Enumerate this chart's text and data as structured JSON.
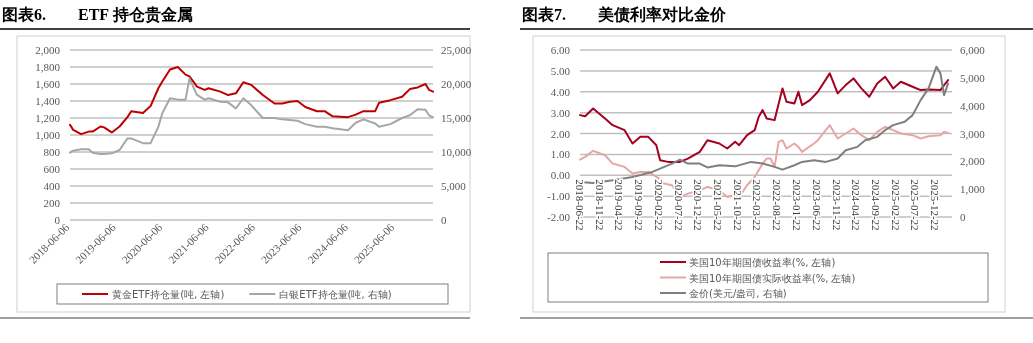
{
  "chart_data": [
    {
      "type": "line",
      "title": "图表6.　　ETF 持仓贵金属",
      "grid": "y",
      "legend": "bottom",
      "x": [
        "2018-06-06",
        "2018-07",
        "2018-09",
        "2018-11",
        "2018-12",
        "2019-02",
        "2019-03",
        "2019-05",
        "2019-07",
        "2019-09",
        "2019-10",
        "2020-01",
        "2020-03",
        "2020-05",
        "2020-06",
        "2020-08",
        "2020-10",
        "2020-12",
        "2021-01",
        "2021-03",
        "2021-05",
        "2021-06",
        "2021-09",
        "2021-11",
        "2022-01",
        "2022-03",
        "2022-05",
        "2022-08",
        "2022-11",
        "2023-01",
        "2023-03",
        "2023-05",
        "2023-07",
        "2023-10",
        "2023-12",
        "2024-02",
        "2024-06",
        "2024-08",
        "2024-10",
        "2025-01",
        "2025-02",
        "2025-05",
        "2025-08",
        "2025-10",
        "2025-12",
        "2026-02",
        "2026-03",
        "2026-04"
      ],
      "series": [
        {
          "name": "黄金ETF持仓量(吨, 左轴)",
          "color": "#c00000",
          "values": [
            1120,
            1060,
            1010,
            1040,
            1040,
            1100,
            1090,
            1030,
            1100,
            1210,
            1280,
            1260,
            1340,
            1550,
            1630,
            1770,
            1800,
            1710,
            1690,
            1570,
            1530,
            1550,
            1510,
            1470,
            1490,
            1620,
            1590,
            1470,
            1370,
            1370,
            1390,
            1400,
            1330,
            1280,
            1280,
            1220,
            1210,
            1240,
            1280,
            1280,
            1380,
            1410,
            1450,
            1540,
            1560,
            1600,
            1530,
            1510
          ]
        },
        {
          "name": "白银ETF持仓量(吨, 右轴)",
          "color": "#a6a6a6",
          "axis": "y2",
          "values": [
            9900,
            10200,
            10400,
            10400,
            9900,
            9700,
            9700,
            9800,
            10300,
            12000,
            12000,
            11300,
            11300,
            13700,
            15700,
            17900,
            17700,
            17700,
            20800,
            18400,
            17700,
            17900,
            17400,
            17300,
            16400,
            17900,
            16900,
            15000,
            15000,
            14800,
            14700,
            14600,
            14100,
            13700,
            13700,
            13500,
            13200,
            14300,
            14800,
            14200,
            13700,
            14100,
            15000,
            15400,
            16300,
            16200,
            15400,
            15100
          ]
        }
      ],
      "xlim": [
        "2018-06-06",
        "2026-04"
      ],
      "xticks": [
        {
          "value": "2018-06-06",
          "label": "2018-06-06"
        },
        {
          "value": "2019-06-06",
          "label": "2019-06-06"
        },
        {
          "value": "2020-06-06",
          "label": "2020-06-06"
        },
        {
          "value": "2021-06-06",
          "label": "2021-06-06"
        },
        {
          "value": "2022-06-06",
          "label": "2022-06-06"
        },
        {
          "value": "2023-06-06",
          "label": "2023-06-06"
        },
        {
          "value": "2024-06-06",
          "label": "2024-06-06"
        },
        {
          "value": "2025-06-06",
          "label": "2025-06-06"
        }
      ],
      "ylim": [
        0,
        2000
      ],
      "yticks": [
        0,
        200,
        400,
        600,
        800,
        {
          "value": 1000,
          "label": "1,000"
        },
        {
          "value": 1200,
          "label": "1,200"
        },
        {
          "value": 1400,
          "label": "1,400"
        },
        {
          "value": 1600,
          "label": "1,600"
        },
        {
          "value": 1800,
          "label": "1,800"
        },
        {
          "value": 2000,
          "label": "2,000"
        }
      ],
      "y2lim": [
        0,
        25000
      ],
      "y2ticks": [
        0,
        {
          "value": 5000,
          "label": "5,000"
        },
        {
          "value": 10000,
          "label": "10,000"
        },
        {
          "value": 15000,
          "label": "15,000"
        },
        {
          "value": 20000,
          "label": "20,000"
        },
        {
          "value": 25000,
          "label": "25,000"
        }
      ]
    },
    {
      "type": "line",
      "title": "图表7.　　美债利率对比金价",
      "grid": "y",
      "legend": "bottom",
      "series": [
        {
          "name": "美国10年期国债收益率(%, 左轴)",
          "color": "#a50021",
          "x": [
            "2018-06-22",
            "2018-08",
            "2018-10",
            "2019-01",
            "2019-03",
            "2019-06",
            "2019-08",
            "2019-10",
            "2019-12",
            "2020-02",
            "2020-03",
            "2020-05",
            "2020-08",
            "2020-10",
            "2021-01",
            "2021-03",
            "2021-06",
            "2021-08",
            "2021-10",
            "2021-11",
            "2022-01",
            "2022-03",
            "2022-04",
            "2022-05",
            "2022-06",
            "2022-08",
            "2022-10",
            "2022-11",
            "2023-01",
            "2023-02",
            "2023-03",
            "2023-05",
            "2023-07",
            "2023-10",
            "2023-12",
            "2024-02",
            "2024-04",
            "2024-06",
            "2024-08",
            "2024-10",
            "2024-12",
            "2025-02",
            "2025-04",
            "2025-07",
            "2025-09",
            "2025-11",
            "2026-02",
            "2026-03",
            "2026-04"
          ],
          "values": [
            2.88,
            2.83,
            3.2,
            2.72,
            2.4,
            2.16,
            1.52,
            1.84,
            1.84,
            1.44,
            0.72,
            0.64,
            0.64,
            0.8,
            1.12,
            1.68,
            1.52,
            1.28,
            1.6,
            1.44,
            1.92,
            2.16,
            2.8,
            3.12,
            2.72,
            2.64,
            4.16,
            3.52,
            3.44,
            4.0,
            3.36,
            3.6,
            4.0,
            4.88,
            3.92,
            4.32,
            4.64,
            4.16,
            3.76,
            4.4,
            4.72,
            4.16,
            4.48,
            4.24,
            4.08,
            4.11,
            4.08,
            4.32,
            4.56
          ]
        },
        {
          "name": "美国10年期国债实际收益率(%, 左轴)",
          "color": "#e6a6a6",
          "x": [
            "2018-06-22",
            "2018-08",
            "2018-10",
            "2019-01",
            "2019-03",
            "2019-06",
            "2019-08",
            "2019-10",
            "2019-12",
            "2020-02",
            "2020-03",
            "2020-04",
            "2020-06",
            "2020-08",
            "2020-10",
            "2021-01",
            "2021-03",
            "2021-06",
            "2021-08",
            "2021-10",
            "2021-11",
            "2022-01",
            "2022-03",
            "2022-05",
            "2022-06",
            "2022-07",
            "2022-08",
            "2022-09",
            "2022-10",
            "2022-11",
            "2023-01",
            "2023-02",
            "2023-03",
            "2023-06",
            "2023-07",
            "2023-10",
            "2023-12",
            "2024-02",
            "2024-04",
            "2024-06",
            "2024-08",
            "2024-10",
            "2024-12",
            "2025-02",
            "2025-04",
            "2025-07",
            "2025-09",
            "2025-11",
            "2026-02",
            "2026-03",
            "2026-04"
          ],
          "values": [
            0.75,
            0.88,
            1.17,
            0.96,
            0.56,
            0.4,
            0.08,
            0.16,
            0.16,
            -0.08,
            -0.2,
            -0.4,
            -0.48,
            -1.04,
            -0.88,
            -0.72,
            -0.56,
            -0.72,
            -1.04,
            -0.96,
            -1.04,
            -0.48,
            -0.08,
            0.56,
            0.8,
            0.8,
            0.4,
            1.6,
            1.68,
            1.28,
            1.52,
            1.36,
            1.12,
            1.52,
            1.68,
            2.4,
            1.76,
            2.0,
            2.24,
            1.92,
            1.68,
            2.08,
            2.32,
            2.16,
            2.0,
            1.92,
            1.76,
            1.87,
            1.92,
            2.08,
            2.03
          ]
        },
        {
          "name": "金价(美元/盎司, 右轴)",
          "color": "#7f7f7f",
          "axis": "y2",
          "x": [
            "2018-06-22",
            "2018-10",
            "2019-03",
            "2019-08",
            "2020-01",
            "2020-03",
            "2020-06",
            "2020-08",
            "2020-10",
            "2021-01",
            "2021-03",
            "2021-06",
            "2021-10",
            "2022-02",
            "2022-05",
            "2022-08",
            "2022-10",
            "2023-01",
            "2023-03",
            "2023-06",
            "2023-09",
            "2023-12",
            "2024-02",
            "2024-05",
            "2024-07",
            "2024-10",
            "2024-12",
            "2025-02",
            "2025-05",
            "2025-07",
            "2025-09",
            "2025-11",
            "2026-01",
            "2026-02",
            "2026-03",
            "2026-04"
          ],
          "values": [
            1260,
            1220,
            1320,
            1440,
            1620,
            1740,
            1920,
            2060,
            1920,
            1920,
            1780,
            1860,
            1820,
            1980,
            1920,
            1800,
            1700,
            1860,
            1980,
            2040,
            1980,
            2100,
            2400,
            2520,
            2760,
            2880,
            3120,
            3300,
            3420,
            3660,
            4200,
            4620,
            5400,
            5160,
            4380,
            4800
          ]
        }
      ],
      "xlim": [
        "2018-06-22",
        "2026-05"
      ],
      "xticks": [
        {
          "value": "2018-06-22",
          "label": "2018-06-22"
        },
        {
          "value": "2018-11-22",
          "label": "2018-11-22"
        },
        {
          "value": "2019-04-22",
          "label": "2019-04-22"
        },
        {
          "value": "2019-09-22",
          "label": "2019-09-22"
        },
        {
          "value": "2020-02-22",
          "label": "2020-02-22"
        },
        {
          "value": "2020-07-22",
          "label": "2020-07-22"
        },
        {
          "value": "2020-12-22",
          "label": "2020-12-22"
        },
        {
          "value": "2021-05-22",
          "label": "2021-05-22"
        },
        {
          "value": "2021-10-22",
          "label": "2021-10-22"
        },
        {
          "value": "2022-03-22",
          "label": "2022-03-22"
        },
        {
          "value": "2022-08-22",
          "label": "2022-08-22"
        },
        {
          "value": "2023-01-22",
          "label": "2023-01-22"
        },
        {
          "value": "2023-06-22",
          "label": "2023-06-22"
        },
        {
          "value": "2023-11-22",
          "label": "2023-11-22"
        },
        {
          "value": "2024-04-22",
          "label": "2024-04-22"
        },
        {
          "value": "2024-09-22",
          "label": "2024-09-22"
        },
        {
          "value": "2025-02-22",
          "label": "2025-02-22"
        },
        {
          "value": "2025-07-22",
          "label": "2025-07-22"
        },
        {
          "value": "2025-12-22",
          "label": "2025-12-22"
        }
      ],
      "ylim": [
        -2,
        6
      ],
      "yticks": [
        {
          "value": -2,
          "label": "-2.00"
        },
        {
          "value": -1,
          "label": "-1.00"
        },
        {
          "value": 0,
          "label": "0.00"
        },
        {
          "value": 1,
          "label": "1.00"
        },
        {
          "value": 2,
          "label": "2.00"
        },
        {
          "value": 3,
          "label": "3.00"
        },
        {
          "value": 4,
          "label": "4.00"
        },
        {
          "value": 5,
          "label": "5.00"
        },
        {
          "value": 6,
          "label": "6.00"
        }
      ],
      "y2lim": [
        0,
        6000
      ],
      "y2ticks": [
        0,
        {
          "value": 1000,
          "label": "1,000"
        },
        {
          "value": 2000,
          "label": "2,000"
        },
        {
          "value": 3000,
          "label": "3,000"
        },
        {
          "value": 4000,
          "label": "4,000"
        },
        {
          "value": 5000,
          "label": "5,000"
        },
        {
          "value": 6000,
          "label": "6,000"
        }
      ]
    }
  ]
}
